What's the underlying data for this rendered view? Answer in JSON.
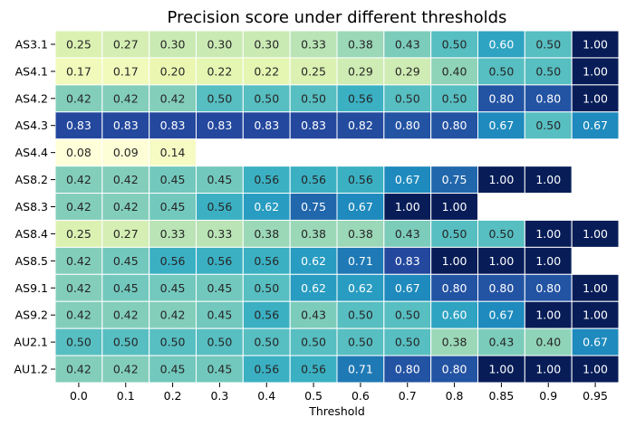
{
  "chart_data": {
    "type": "heatmap",
    "title": "Precision score under different thresholds",
    "xlabel": "Threshold",
    "ylabel": "",
    "x": [
      "0.0",
      "0.1",
      "0.2",
      "0.3",
      "0.4",
      "0.5",
      "0.6",
      "0.7",
      "0.8",
      "0.85",
      "0.9",
      "0.95"
    ],
    "y": [
      "AS3.1",
      "AS4.1",
      "AS4.2",
      "AS4.3",
      "AS4.4",
      "AS8.2",
      "AS8.3",
      "AS8.4",
      "AS8.5",
      "AS9.1",
      "AS9.2",
      "AU2.1",
      "AU1.2"
    ],
    "values": [
      [
        0.25,
        0.27,
        0.3,
        0.3,
        0.3,
        0.33,
        0.38,
        0.43,
        0.5,
        0.6,
        0.5,
        1.0
      ],
      [
        0.17,
        0.17,
        0.2,
        0.22,
        0.22,
        0.25,
        0.29,
        0.29,
        0.4,
        0.5,
        0.5,
        1.0
      ],
      [
        0.42,
        0.42,
        0.42,
        0.5,
        0.5,
        0.5,
        0.56,
        0.5,
        0.5,
        0.8,
        0.8,
        1.0
      ],
      [
        0.83,
        0.83,
        0.83,
        0.83,
        0.83,
        0.83,
        0.82,
        0.8,
        0.8,
        0.67,
        0.5,
        0.67
      ],
      [
        0.08,
        0.09,
        0.14,
        null,
        null,
        null,
        null,
        null,
        null,
        null,
        null,
        null
      ],
      [
        0.42,
        0.42,
        0.45,
        0.45,
        0.56,
        0.56,
        0.56,
        0.67,
        0.75,
        1.0,
        1.0,
        null
      ],
      [
        0.42,
        0.42,
        0.45,
        0.56,
        0.62,
        0.75,
        0.67,
        1.0,
        1.0,
        null,
        null,
        null
      ],
      [
        0.25,
        0.27,
        0.33,
        0.33,
        0.38,
        0.38,
        0.38,
        0.43,
        0.5,
        0.5,
        1.0,
        1.0
      ],
      [
        0.42,
        0.45,
        0.56,
        0.56,
        0.56,
        0.62,
        0.71,
        0.83,
        1.0,
        1.0,
        1.0,
        null
      ],
      [
        0.42,
        0.45,
        0.45,
        0.45,
        0.5,
        0.62,
        0.62,
        0.67,
        0.8,
        0.8,
        0.8,
        1.0
      ],
      [
        0.42,
        0.42,
        0.42,
        0.45,
        0.56,
        0.43,
        0.5,
        0.5,
        0.6,
        0.67,
        1.0,
        1.0
      ],
      [
        0.5,
        0.5,
        0.5,
        0.5,
        0.5,
        0.5,
        0.5,
        0.5,
        0.38,
        0.43,
        0.4,
        0.67
      ],
      [
        0.42,
        0.42,
        0.45,
        0.45,
        0.56,
        0.56,
        0.71,
        0.8,
        0.8,
        1.0,
        1.0,
        1.0
      ]
    ],
    "colormap": "YlGnBu",
    "value_format": "0.00",
    "grid": false,
    "legend": "none"
  }
}
